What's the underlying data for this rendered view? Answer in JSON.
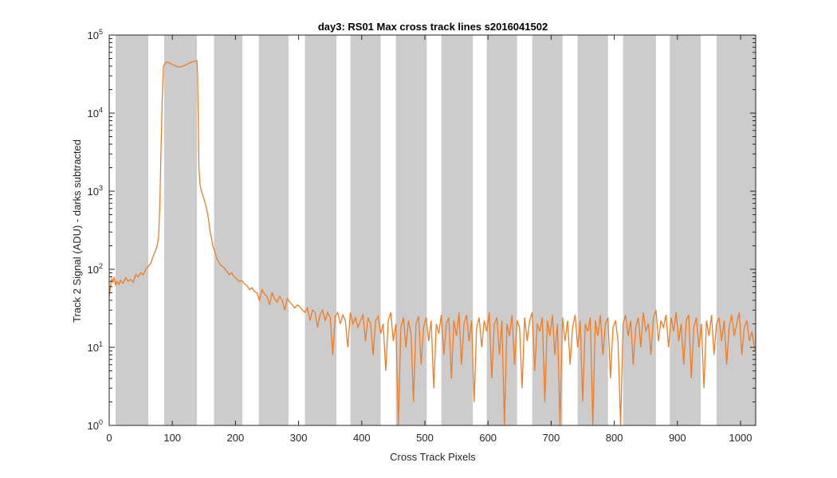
{
  "chart_data": {
    "type": "line",
    "title": "day3: RS01  Max cross track lines  s2016041502",
    "xlabel": "Cross Track Pixels",
    "ylabel": "Track 2 Signal (ADU) - darks subtracted",
    "xlim": [
      0,
      1024
    ],
    "ylim": [
      1,
      100000
    ],
    "yscale": "log",
    "x_ticks": [
      "0",
      "100",
      "200",
      "300",
      "400",
      "500",
      "600",
      "700",
      "800",
      "900",
      "1000"
    ],
    "y_ticks": [
      {
        "base": "10",
        "exp": "0"
      },
      {
        "base": "10",
        "exp": "1"
      },
      {
        "base": "10",
        "exp": "2"
      },
      {
        "base": "10",
        "exp": "3"
      },
      {
        "base": "10",
        "exp": "4"
      },
      {
        "base": "10",
        "exp": "5"
      }
    ],
    "shaded_bands": [
      [
        10,
        62
      ],
      [
        87,
        139
      ],
      [
        166,
        211
      ],
      [
        237,
        284
      ],
      [
        310,
        360
      ],
      [
        382,
        430
      ],
      [
        454,
        503
      ],
      [
        526,
        576
      ],
      [
        598,
        646
      ],
      [
        670,
        718
      ],
      [
        742,
        790
      ],
      [
        814,
        866
      ],
      [
        888,
        937
      ],
      [
        962,
        1024
      ]
    ],
    "band_color": "#cccccc",
    "series": [
      {
        "color": "#f47b20",
        "points": [
          [
            0,
            45
          ],
          [
            2,
            60
          ],
          [
            4,
            75
          ],
          [
            6,
            68
          ],
          [
            8,
            80
          ],
          [
            10,
            62
          ],
          [
            12,
            70
          ],
          [
            15,
            64
          ],
          [
            18,
            72
          ],
          [
            22,
            66
          ],
          [
            26,
            78
          ],
          [
            30,
            70
          ],
          [
            34,
            74
          ],
          [
            38,
            68
          ],
          [
            42,
            85
          ],
          [
            46,
            80
          ],
          [
            50,
            90
          ],
          [
            54,
            85
          ],
          [
            58,
            100
          ],
          [
            62,
            110
          ],
          [
            66,
            120
          ],
          [
            70,
            150
          ],
          [
            73,
            170
          ],
          [
            76,
            200
          ],
          [
            78,
            250
          ],
          [
            80,
            600
          ],
          [
            82,
            3000
          ],
          [
            84,
            15000
          ],
          [
            86,
            40000
          ],
          [
            90,
            45000
          ],
          [
            95,
            44000
          ],
          [
            100,
            42000
          ],
          [
            105,
            40000
          ],
          [
            110,
            39000
          ],
          [
            115,
            39500
          ],
          [
            120,
            41000
          ],
          [
            125,
            43000
          ],
          [
            130,
            45000
          ],
          [
            135,
            46000
          ],
          [
            139,
            47000
          ],
          [
            140,
            30000
          ],
          [
            141,
            8000
          ],
          [
            142,
            2000
          ],
          [
            144,
            1200
          ],
          [
            146,
            1000
          ],
          [
            148,
            900
          ],
          [
            150,
            800
          ],
          [
            152,
            700
          ],
          [
            154,
            600
          ],
          [
            156,
            500
          ],
          [
            158,
            400
          ],
          [
            160,
            300
          ],
          [
            162,
            250
          ],
          [
            164,
            200
          ],
          [
            166,
            180
          ],
          [
            168,
            160
          ],
          [
            170,
            140
          ],
          [
            174,
            120
          ],
          [
            178,
            110
          ],
          [
            182,
            105
          ],
          [
            186,
            95
          ],
          [
            190,
            85
          ],
          [
            194,
            90
          ],
          [
            198,
            80
          ],
          [
            202,
            75
          ],
          [
            206,
            70
          ],
          [
            210,
            72
          ],
          [
            214,
            65
          ],
          [
            218,
            62
          ],
          [
            222,
            55
          ],
          [
            226,
            58
          ],
          [
            230,
            52
          ],
          [
            234,
            50
          ],
          [
            238,
            40
          ],
          [
            242,
            55
          ],
          [
            246,
            48
          ],
          [
            250,
            45
          ],
          [
            254,
            35
          ],
          [
            258,
            50
          ],
          [
            262,
            42
          ],
          [
            266,
            38
          ],
          [
            270,
            45
          ],
          [
            274,
            40
          ],
          [
            278,
            30
          ],
          [
            282,
            42
          ],
          [
            286,
            38
          ],
          [
            290,
            35
          ],
          [
            294,
            32
          ],
          [
            298,
            35
          ],
          [
            302,
            33
          ],
          [
            306,
            30
          ],
          [
            310,
            28
          ],
          [
            314,
            32
          ],
          [
            318,
            22
          ],
          [
            322,
            30
          ],
          [
            326,
            28
          ],
          [
            330,
            18
          ],
          [
            334,
            26
          ],
          [
            338,
            30
          ],
          [
            342,
            22
          ],
          [
            346,
            28
          ],
          [
            350,
            24
          ],
          [
            354,
            8
          ],
          [
            358,
            25
          ],
          [
            362,
            28
          ],
          [
            366,
            20
          ],
          [
            370,
            26
          ],
          [
            374,
            22
          ],
          [
            378,
            10
          ],
          [
            382,
            28
          ],
          [
            386,
            20
          ],
          [
            390,
            24
          ],
          [
            394,
            18
          ],
          [
            398,
            22
          ],
          [
            402,
            26
          ],
          [
            406,
            12
          ],
          [
            410,
            24
          ],
          [
            414,
            20
          ],
          [
            418,
            8
          ],
          [
            422,
            22
          ],
          [
            426,
            25
          ],
          [
            430,
            15
          ],
          [
            434,
            20
          ],
          [
            438,
            5
          ],
          [
            442,
            22
          ],
          [
            446,
            28
          ],
          [
            450,
            12
          ],
          [
            454,
            20
          ],
          [
            458,
            1
          ],
          [
            462,
            18
          ],
          [
            466,
            24
          ],
          [
            470,
            10
          ],
          [
            474,
            22
          ],
          [
            478,
            15
          ],
          [
            482,
            2
          ],
          [
            486,
            20
          ],
          [
            490,
            25
          ],
          [
            494,
            6
          ],
          [
            498,
            18
          ],
          [
            502,
            24
          ],
          [
            506,
            12
          ],
          [
            510,
            22
          ],
          [
            514,
            3
          ],
          [
            518,
            20
          ],
          [
            522,
            15
          ],
          [
            526,
            26
          ],
          [
            530,
            8
          ],
          [
            534,
            20
          ],
          [
            538,
            24
          ],
          [
            542,
            4
          ],
          [
            546,
            22
          ],
          [
            550,
            14
          ],
          [
            554,
            28
          ],
          [
            558,
            6
          ],
          [
            562,
            20
          ],
          [
            566,
            26
          ],
          [
            570,
            12
          ],
          [
            574,
            22
          ],
          [
            578,
            2
          ],
          [
            582,
            18
          ],
          [
            586,
            24
          ],
          [
            590,
            10
          ],
          [
            594,
            22
          ],
          [
            598,
            16
          ],
          [
            602,
            28
          ],
          [
            606,
            4
          ],
          [
            610,
            20
          ],
          [
            614,
            24
          ],
          [
            618,
            8
          ],
          [
            622,
            22
          ],
          [
            626,
            1
          ],
          [
            630,
            20
          ],
          [
            634,
            14
          ],
          [
            638,
            26
          ],
          [
            642,
            6
          ],
          [
            646,
            22
          ],
          [
            650,
            18
          ],
          [
            654,
            3
          ],
          [
            658,
            24
          ],
          [
            662,
            12
          ],
          [
            666,
            22
          ],
          [
            670,
            28
          ],
          [
            674,
            5
          ],
          [
            678,
            20
          ],
          [
            682,
            16
          ],
          [
            686,
            24
          ],
          [
            690,
            2
          ],
          [
            694,
            22
          ],
          [
            698,
            14
          ],
          [
            702,
            26
          ],
          [
            706,
            8
          ],
          [
            710,
            20
          ],
          [
            714,
            1
          ],
          [
            718,
            24
          ],
          [
            722,
            12
          ],
          [
            726,
            22
          ],
          [
            730,
            6
          ],
          [
            734,
            18
          ],
          [
            738,
            26
          ],
          [
            742,
            10
          ],
          [
            746,
            22
          ],
          [
            750,
            2
          ],
          [
            754,
            20
          ],
          [
            758,
            16
          ],
          [
            762,
            24
          ],
          [
            766,
            1
          ],
          [
            770,
            22
          ],
          [
            774,
            14
          ],
          [
            778,
            26
          ],
          [
            782,
            8
          ],
          [
            786,
            20
          ],
          [
            790,
            24
          ],
          [
            794,
            4
          ],
          [
            798,
            18
          ],
          [
            802,
            22
          ],
          [
            806,
            12
          ],
          [
            810,
            1
          ],
          [
            814,
            20
          ],
          [
            818,
            26
          ],
          [
            822,
            14
          ],
          [
            826,
            22
          ],
          [
            830,
            6
          ],
          [
            834,
            18
          ],
          [
            838,
            24
          ],
          [
            842,
            10
          ],
          [
            846,
            28
          ],
          [
            850,
            16
          ],
          [
            854,
            20
          ],
          [
            858,
            8
          ],
          [
            862,
            24
          ],
          [
            866,
            30
          ],
          [
            870,
            12
          ],
          [
            874,
            22
          ],
          [
            878,
            18
          ],
          [
            882,
            26
          ],
          [
            886,
            10
          ],
          [
            890,
            24
          ],
          [
            894,
            16
          ],
          [
            898,
            28
          ],
          [
            902,
            12
          ],
          [
            906,
            20
          ],
          [
            910,
            6
          ],
          [
            914,
            22
          ],
          [
            918,
            26
          ],
          [
            922,
            4
          ],
          [
            926,
            18
          ],
          [
            930,
            24
          ],
          [
            934,
            10
          ],
          [
            938,
            20
          ],
          [
            942,
            3
          ],
          [
            946,
            22
          ],
          [
            950,
            14
          ],
          [
            954,
            26
          ],
          [
            958,
            8
          ],
          [
            962,
            20
          ],
          [
            966,
            24
          ],
          [
            970,
            12
          ],
          [
            974,
            22
          ],
          [
            978,
            6
          ],
          [
            982,
            18
          ],
          [
            986,
            26
          ],
          [
            990,
            14
          ],
          [
            994,
            20
          ],
          [
            998,
            28
          ],
          [
            1002,
            8
          ],
          [
            1006,
            18
          ],
          [
            1010,
            22
          ],
          [
            1014,
            12
          ],
          [
            1018,
            16
          ],
          [
            1022,
            10
          ],
          [
            1024,
            9
          ]
        ]
      }
    ]
  }
}
